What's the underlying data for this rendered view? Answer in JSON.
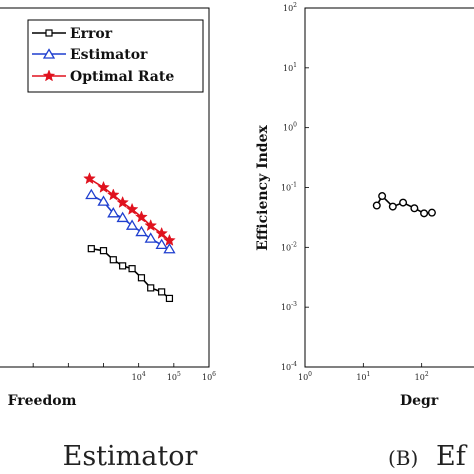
{
  "chart_data": [
    {
      "type": "line",
      "xscale": "log",
      "yscale": "log",
      "xlabel": "Freedom",
      "ylabel": "",
      "xlim": [
        1,
        1000000
      ],
      "ylim": [
        0.0001,
        100
      ],
      "x_ticks_visible": [
        "10^{4}",
        "10^{5}",
        "10^{6}"
      ],
      "legend_position": "top-right",
      "grid": false,
      "series": [
        {
          "name": "Error",
          "color": "#000000",
          "marker": "square",
          "x": [
            450,
            1000,
            1900,
            3500,
            6500,
            12000,
            22000,
            45000,
            75000
          ],
          "y": [
            0.0095,
            0.0088,
            0.0062,
            0.0049,
            0.0044,
            0.0031,
            0.0021,
            0.0018,
            0.0014
          ]
        },
        {
          "name": "Estimator",
          "color": "#1f3fcf",
          "marker": "triangle",
          "x": [
            450,
            1000,
            1900,
            3500,
            6500,
            12000,
            22000,
            45000,
            75000
          ],
          "y": [
            0.075,
            0.058,
            0.037,
            0.031,
            0.023,
            0.018,
            0.014,
            0.011,
            0.0093
          ]
        },
        {
          "name": "Optimal Rate",
          "color": "#e0121e",
          "marker": "star",
          "x": [
            400,
            1000,
            1900,
            3500,
            6500,
            12000,
            22000,
            45000,
            75000
          ],
          "y": [
            0.14,
            0.1,
            0.075,
            0.056,
            0.043,
            0.032,
            0.023,
            0.017,
            0.013
          ]
        }
      ],
      "caption_visible": "Estimator"
    },
    {
      "type": "line",
      "xscale": "log",
      "yscale": "log",
      "xlabel": "Degr",
      "ylabel": "Efficiency Index",
      "xlim": [
        1,
        1000
      ],
      "ylim": [
        0.0001,
        100
      ],
      "x_ticks_visible": [
        "10^{0}",
        "10^{1}",
        "10^{2}"
      ],
      "y_ticks_visible": [
        "10^{2}",
        "10^{1}",
        "10^{0}",
        "10^{-1}",
        "10^{-2}",
        "10^{-3}",
        "10^{-4}"
      ],
      "grid": false,
      "series": [
        {
          "name": "",
          "color": "#000000",
          "marker": "circle",
          "x": [
            17,
            21,
            32,
            48,
            75,
            110,
            150
          ],
          "y": [
            0.05,
            0.072,
            0.048,
            0.056,
            0.045,
            0.037,
            0.038
          ]
        }
      ],
      "caption_prefix": "(B)",
      "caption_visible": "Ef"
    }
  ]
}
